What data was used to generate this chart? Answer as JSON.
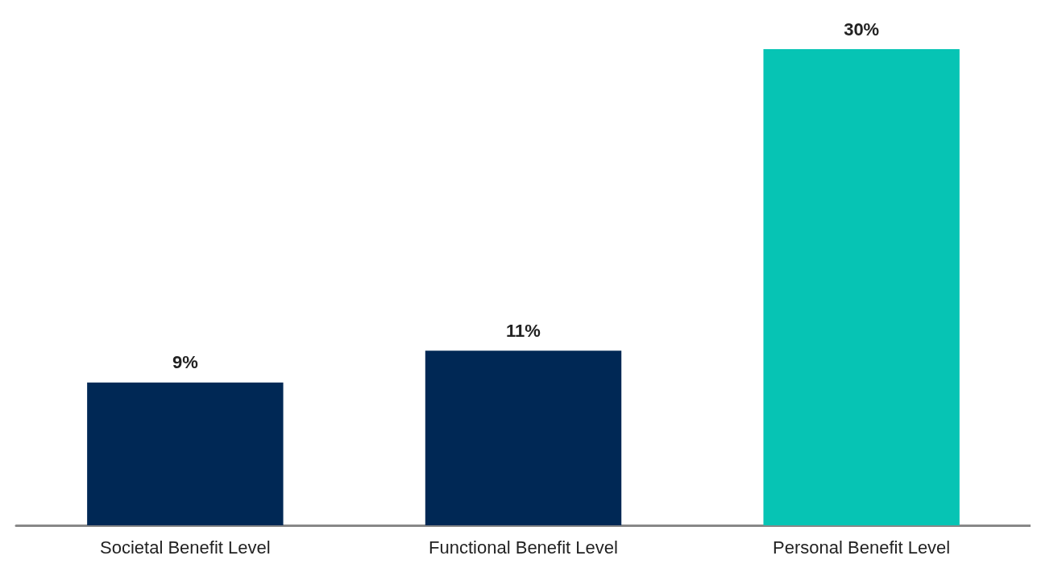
{
  "chart_data": {
    "type": "bar",
    "categories": [
      "Societal Benefit Level",
      "Functional Benefit Level",
      "Personal Benefit Level"
    ],
    "values": [
      9,
      11,
      30
    ],
    "colors": [
      "#002855",
      "#002855",
      "#06c4b4"
    ],
    "value_labels": [
      "9%",
      "11%",
      "30%"
    ]
  }
}
